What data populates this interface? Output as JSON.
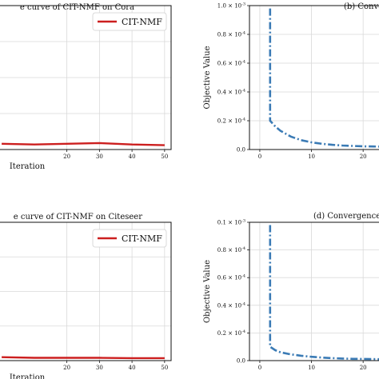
{
  "chart_data": [
    {
      "type": "line",
      "panel": "top-left",
      "title": "e curve of CIT-NMF on Cora",
      "xlabel": "Iteration",
      "ylabel": "",
      "xlim": [
        -2,
        52
      ],
      "xticks": [
        "20",
        "30",
        "40",
        "50"
      ],
      "grid": true,
      "legend": "top-right",
      "series": [
        {
          "name": "CIT-NMF",
          "color": "#cc1f1f",
          "style": "solid",
          "x": [
            0,
            10,
            20,
            30,
            40,
            50
          ],
          "y": [
            0.04,
            0.035,
            0.04,
            0.045,
            0.035,
            0.03
          ]
        }
      ]
    },
    {
      "type": "line",
      "panel": "top-right",
      "title": "(b) Convergence",
      "xlabel": "",
      "ylabel": "Objective Value",
      "xlim": [
        -2,
        24
      ],
      "ylim": [
        0,
        1.0
      ],
      "xticks": [
        "0",
        "10",
        "20"
      ],
      "yticks": [
        "0.0",
        "0.2 × 10^-4",
        "0.4 × 10^-4",
        "0.6 × 10^-4",
        "0.8 × 10^-4",
        "1.0 × 10^-3"
      ],
      "grid": true,
      "series": [
        {
          "color": "#3b7bb5",
          "style": "dashdot",
          "x": [
            2,
            2,
            3,
            4,
            6,
            8,
            10,
            12,
            14,
            16,
            18,
            20,
            22,
            24
          ],
          "y": [
            0.98,
            0.2,
            0.16,
            0.13,
            0.09,
            0.065,
            0.05,
            0.04,
            0.033,
            0.028,
            0.025,
            0.022,
            0.021,
            0.02
          ]
        }
      ]
    },
    {
      "type": "line",
      "panel": "bottom-left",
      "title": "e curve of CIT-NMF on Citeseer",
      "xlabel": "Iteration",
      "ylabel": "",
      "xlim": [
        -2,
        52
      ],
      "xticks": [
        "20",
        "30",
        "40",
        "50"
      ],
      "grid": true,
      "legend": "top-right",
      "series": [
        {
          "name": "CIT-NMF",
          "color": "#cc1f1f",
          "style": "solid",
          "x": [
            0,
            10,
            20,
            30,
            40,
            50
          ],
          "y": [
            0.025,
            0.02,
            0.02,
            0.02,
            0.018,
            0.018
          ]
        }
      ]
    },
    {
      "type": "line",
      "panel": "bottom-right",
      "title": "(d) Convergence",
      "xlabel": "",
      "ylabel": "Objective Value",
      "xlim": [
        -2,
        24
      ],
      "ylim": [
        0,
        1.0
      ],
      "xticks": [
        "0",
        "10",
        "20"
      ],
      "yticks": [
        "0.0",
        "0.2 × 10^-4",
        "0.4 × 10^-4",
        "0.6 × 10^-4",
        "0.8 × 10^-4",
        "0.1 × 10^-3"
      ],
      "grid": true,
      "series": [
        {
          "color": "#3b7bb5",
          "style": "dashdot",
          "x": [
            2,
            2,
            3,
            4,
            6,
            8,
            10,
            12,
            14,
            16,
            18,
            20,
            22,
            24
          ],
          "y": [
            0.98,
            0.1,
            0.075,
            0.06,
            0.045,
            0.035,
            0.028,
            0.022,
            0.018,
            0.015,
            0.013,
            0.012,
            0.011,
            0.01
          ]
        }
      ]
    }
  ]
}
